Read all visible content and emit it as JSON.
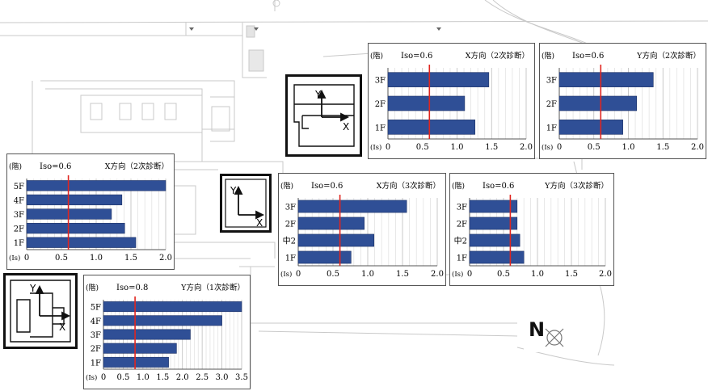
{
  "axis_unit_label": "(Is)",
  "floor_axis_label": "(階)",
  "compass": {
    "letter": "N",
    "icon": "north-compass-icon"
  },
  "keys": [
    {
      "id": "key-top",
      "axis_y": "Y",
      "axis_x": "X"
    },
    {
      "id": "key-mid",
      "axis_y": "Y",
      "axis_x": "X"
    },
    {
      "id": "key-left",
      "axis_y": "Y",
      "axis_x": "X"
    }
  ],
  "chart_data": [
    {
      "type": "bar",
      "orientation": "horizontal",
      "threshold_label": "Iso=0.6",
      "threshold": 0.6,
      "title": "X方向（2次診断）",
      "categories": [
        "3F",
        "2F",
        "1F"
      ],
      "values": [
        1.46,
        1.11,
        1.26
      ],
      "xticks": [
        "0",
        "0.5",
        "1.0",
        "1.5",
        "2.0"
      ],
      "xlim": [
        0,
        2.0
      ],
      "bar_color": "#2f4f96",
      "threshold_color": "#e0251f"
    },
    {
      "type": "bar",
      "orientation": "horizontal",
      "threshold_label": "Iso=0.6",
      "threshold": 0.6,
      "title": "Y方向（2次診断）",
      "categories": [
        "3F",
        "2F",
        "1F"
      ],
      "values": [
        1.36,
        1.12,
        0.92
      ],
      "xticks": [
        "0",
        "0.5",
        "1.0",
        "1.5",
        "2.0"
      ],
      "xlim": [
        0,
        2.0
      ],
      "bar_color": "#2f4f96",
      "threshold_color": "#e0251f"
    },
    {
      "type": "bar",
      "orientation": "horizontal",
      "threshold_label": "Iso=0.6",
      "threshold": 0.6,
      "title": "X方向（2次診断）",
      "categories": [
        "5F",
        "4F",
        "3F",
        "2F",
        "1F"
      ],
      "values": [
        2.0,
        1.37,
        1.22,
        1.41,
        1.57
      ],
      "xticks": [
        "0",
        "0.5",
        "1.0",
        "1.5",
        "2.0"
      ],
      "xlim": [
        0,
        2.0
      ],
      "bar_color": "#2f4f96",
      "threshold_color": "#e0251f"
    },
    {
      "type": "bar",
      "orientation": "horizontal",
      "threshold_label": "Iso=0.6",
      "threshold": 0.6,
      "title": "X方向（3次診断）",
      "categories": [
        "3F",
        "2F",
        "中2",
        "1F"
      ],
      "values": [
        1.56,
        0.95,
        1.09,
        0.76
      ],
      "xticks": [
        "0",
        "0.5",
        "1.0",
        "1.5",
        "2.0"
      ],
      "xlim": [
        0,
        2.0
      ],
      "bar_color": "#2f4f96",
      "threshold_color": "#e0251f"
    },
    {
      "type": "bar",
      "orientation": "horizontal",
      "threshold_label": "Iso=0.6",
      "threshold": 0.6,
      "title": "Y方向（3次診断）",
      "categories": [
        "3F",
        "2F",
        "中2",
        "1F"
      ],
      "values": [
        0.7,
        0.7,
        0.74,
        0.8
      ],
      "xticks": [
        "0",
        "0.5",
        "1.0",
        "1.5",
        "2.0"
      ],
      "xlim": [
        0,
        2.0
      ],
      "bar_color": "#2f4f96",
      "threshold_color": "#e0251f"
    },
    {
      "type": "bar",
      "orientation": "horizontal",
      "threshold_label": "Iso=0.8",
      "threshold": 0.8,
      "title": "Y方向（1次診断）",
      "categories": [
        "5F",
        "4F",
        "3F",
        "2F",
        "1F"
      ],
      "values": [
        3.5,
        3.0,
        2.2,
        1.85,
        1.65
      ],
      "xticks": [
        "0",
        "0.5",
        "1.0",
        "1.5",
        "2.0",
        "2.5",
        "3.0",
        "3.5"
      ],
      "xlim": [
        0,
        3.5
      ],
      "bar_color": "#2f4f96",
      "threshold_color": "#e0251f"
    }
  ]
}
